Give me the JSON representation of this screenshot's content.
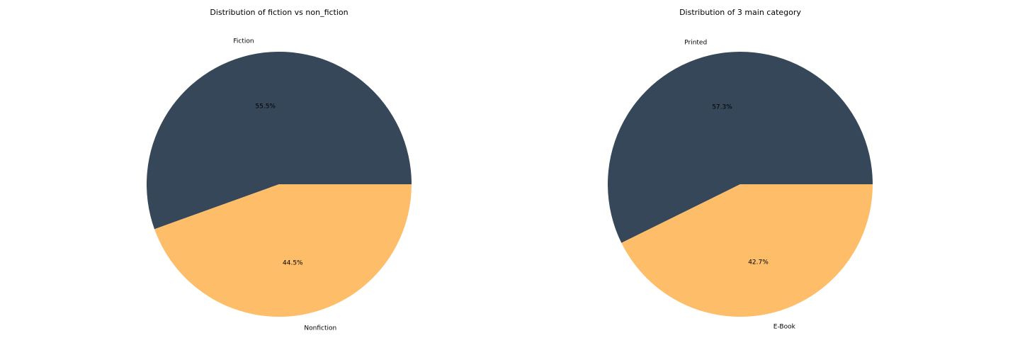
{
  "chart_data": [
    {
      "type": "pie",
      "title": "Distribution of fiction vs non_fiction",
      "labels": [
        "Fiction",
        "Nonfiction"
      ],
      "values": [
        55.5,
        44.5
      ],
      "value_labels": [
        "55.5%",
        "44.5%"
      ],
      "colors": [
        "#364759",
        "#fdbd69"
      ],
      "start_angle_deg": 0,
      "direction": "counterclockwise"
    },
    {
      "type": "pie",
      "title": "Distribution of 3 main category",
      "labels": [
        "Printed",
        "E-Book"
      ],
      "values": [
        57.3,
        42.7
      ],
      "value_labels": [
        "57.3%",
        "42.7%"
      ],
      "colors": [
        "#364759",
        "#fdbd69"
      ],
      "start_angle_deg": 0,
      "direction": "counterclockwise"
    }
  ]
}
